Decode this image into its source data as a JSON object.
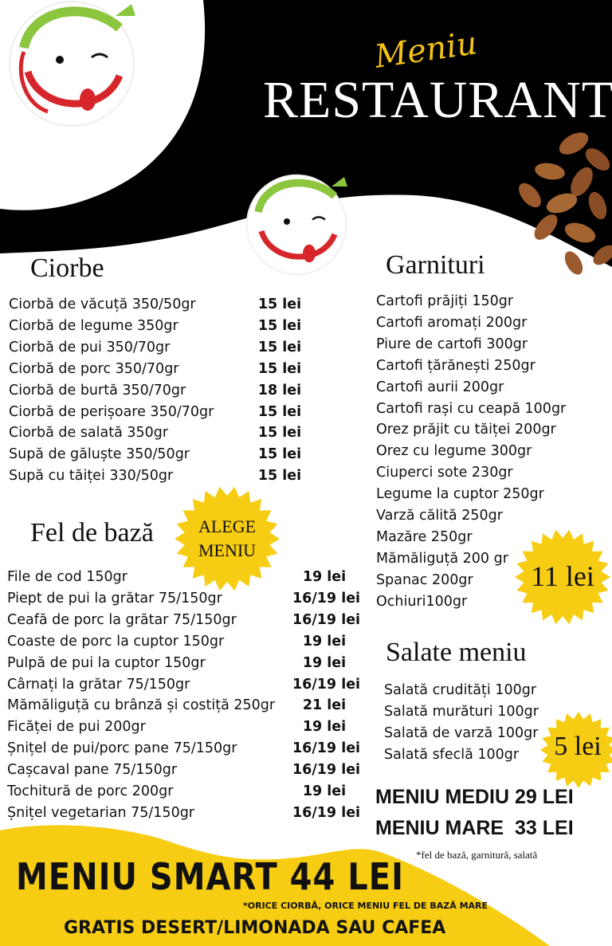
{
  "header": {
    "script_title": "Meniu",
    "title": "RESTAURANT"
  },
  "colors": {
    "accent": "#f7cd13",
    "dark": "#000000",
    "logo_green": "#8cc63f",
    "logo_red": "#d6262b",
    "almond": "#9b5a2e"
  },
  "ciorbe": {
    "heading": "Ciorbe",
    "items": [
      {
        "name": "Ciorbă de văcuță 350/50gr",
        "price": "15 lei"
      },
      {
        "name": "Ciorbă de legume 350gr",
        "price": "15 lei"
      },
      {
        "name": "Ciorbă de pui 350/70gr",
        "price": "15 lei"
      },
      {
        "name": "Ciorbă de porc 350/70gr",
        "price": "15 lei"
      },
      {
        "name": "Ciorbă de burtă 350/70gr",
        "price": "18 lei"
      },
      {
        "name": "Ciorbă de perișoare 350/70gr",
        "price": "15 lei"
      },
      {
        "name": "Ciorbă de salată 350gr",
        "price": "15 lei"
      },
      {
        "name": "Supă de găluște 350/50gr",
        "price": "15 lei"
      },
      {
        "name": "Supă cu tăiței 330/50gr",
        "price": "15 lei"
      }
    ]
  },
  "fel_de_baza": {
    "heading": "Fel de bază",
    "badge": [
      "ALEGE",
      "MENIU"
    ],
    "items": [
      {
        "name": "File de cod 150gr",
        "price": "19 lei"
      },
      {
        "name": "Piept de pui la grătar 75/150gr",
        "price": "16/19 lei"
      },
      {
        "name": "Ceafă de porc la grătar 75/150gr",
        "price": "16/19 lei"
      },
      {
        "name": "Coaste de porc la cuptor 150gr",
        "price": "19 lei"
      },
      {
        "name": "Pulpă de pui la cuptor 150gr",
        "price": "19 lei"
      },
      {
        "name": "Cârnați la grătar 75/150gr",
        "price": "16/19 lei"
      },
      {
        "name": "Mămăliguță cu brânză și costiță 250gr",
        "price": "21 lei"
      },
      {
        "name": "Ficăței de pui 200gr",
        "price": "19 lei"
      },
      {
        "name": "Șnițel de pui/porc pane 75/150gr",
        "price": "16/19 lei"
      },
      {
        "name": "Cașcaval pane 75/150gr",
        "price": "16/19 lei"
      },
      {
        "name": "Tochitură de porc 200gr",
        "price": "19 lei"
      },
      {
        "name": "Șnițel vegetarian 75/150gr",
        "price": "16/19 lei"
      }
    ]
  },
  "garnituri": {
    "heading": "Garnituri",
    "badge": "11 lei",
    "items": [
      "Cartofi prăjiți 150gr",
      "Cartofi aromați 200gr",
      "Piure de cartofi 300gr",
      "Cartofi țărănești 250gr",
      "Cartofi aurii 200gr",
      "Cartofi rași cu ceapă 100gr",
      "Orez prăjit cu tăiței 200gr",
      "Orez cu legume 300gr",
      "Ciuperci sote 230gr",
      "Legume la cuptor 250gr",
      "Varză călită 250gr",
      "Mazăre 250gr",
      "Mămăliguță 200 gr",
      "Spanac 200gr",
      "Ochiuri100gr"
    ]
  },
  "salate": {
    "heading": "Salate meniu",
    "badge": "5 lei",
    "items": [
      "Salată crudități 100gr",
      "Salată murături 100gr",
      "Salată de varză 100gr",
      "Salată sfeclă 100gr"
    ]
  },
  "menus": {
    "mediu": "MENIU MEDIU 29 LEI",
    "mare": "MENIU MARE  33 LEI",
    "note": "*fel de bază, garnitură, salată"
  },
  "smart": {
    "title": "MENIU SMART 44 LEI",
    "note": "*ORICE CIORBĂ, ORICE MENIU FEL DE BAZĂ MARE",
    "bonus": "GRATIS DESERT/LIMONADA SAU CAFEA"
  }
}
